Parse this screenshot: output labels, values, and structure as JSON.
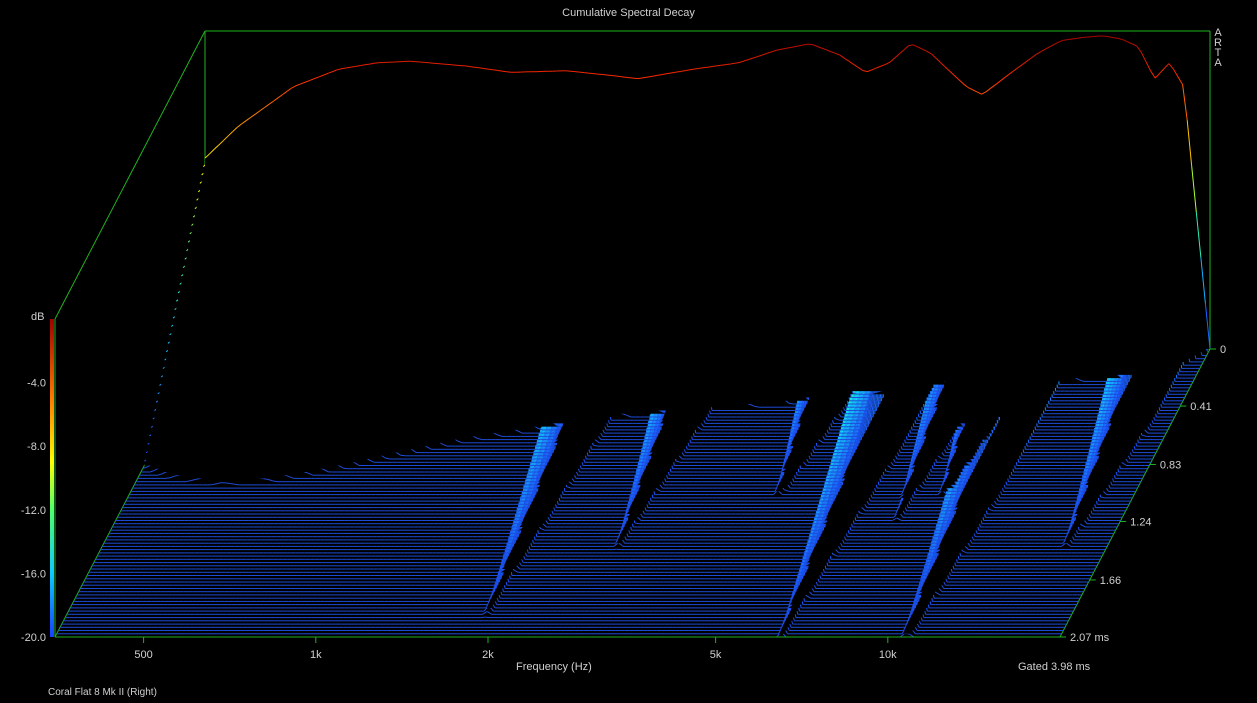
{
  "chart_data": {
    "type": "waterfall",
    "title": "Cumulative Spectral Decay",
    "xlabel": "Frequency (Hz)",
    "zlabel": "dB",
    "x_scale": "log",
    "x_ticks": [
      "500",
      "1k",
      "2k",
      "5k",
      "10k"
    ],
    "x_tick_values": [
      500,
      1000,
      2000,
      5000,
      10000
    ],
    "xlim": [
      350,
      20000
    ],
    "db_ticks": [
      "-4.0",
      "-8.0",
      "-12.0",
      "-16.0",
      "-20.0"
    ],
    "db_tick_values": [
      -4,
      -8,
      -12,
      -16,
      -20
    ],
    "zlim": [
      -20,
      0
    ],
    "time_ticks": [
      "0",
      "0.41",
      "0.83",
      "1.24",
      "1.66",
      "2.07 ms"
    ],
    "time_tick_values": [
      0,
      0.41,
      0.83,
      1.24,
      1.66,
      2.07
    ],
    "time_unit": "ms",
    "gating": "Gated 3.98 ms",
    "slice_count": 90,
    "initial_response": {
      "freq_hz": [
        350,
        400,
        500,
        600,
        700,
        800,
        1000,
        1200,
        1500,
        1800,
        2000,
        2500,
        3000,
        3500,
        4000,
        4500,
        5000,
        5500,
        6000,
        6500,
        7000,
        7500,
        8000,
        9000,
        10000,
        11000,
        12000,
        13000,
        14000,
        15000,
        16000,
        17000,
        18000,
        19000,
        20000
      ],
      "level_db": [
        -8.0,
        -6.0,
        -3.5,
        -2.4,
        -2.0,
        -1.9,
        -2.2,
        -2.6,
        -2.5,
        -2.8,
        -3.0,
        -2.4,
        -2.0,
        -1.2,
        -0.8,
        -1.5,
        -2.6,
        -2.0,
        -0.8,
        -1.4,
        -2.5,
        -3.5,
        -4.0,
        -2.6,
        -1.4,
        -0.6,
        -0.4,
        -0.3,
        -0.5,
        -1.0,
        -3.0,
        -2.0,
        -3.5,
        -12.0,
        -20.0
      ]
    },
    "ridges_hz": [
      1900,
      2800,
      4800,
      6500,
      8100,
      9300,
      10800,
      17000
    ],
    "palette": [
      "#1840ff",
      "#1c8cff",
      "#10d8ff",
      "#50ff70",
      "#ffff00",
      "#ff9000",
      "#ff2a00",
      "#a00000"
    ],
    "floor_color": "#1d4cd8",
    "axis_color": "#1fb31f"
  },
  "labels": {
    "brand": "ARTA",
    "gated": "Gated 3.98 ms",
    "caption": "Coral Flat 8 Mk II (Right)"
  }
}
